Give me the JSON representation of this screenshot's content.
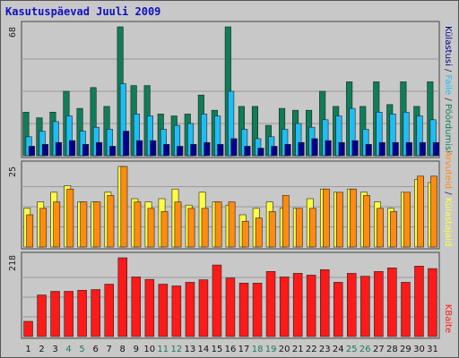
{
  "title": "Kasutuspäevad Juuli 2009",
  "chart_data": {
    "type": "bar",
    "categories": [
      "1",
      "2",
      "3",
      "4",
      "5",
      "6",
      "7",
      "8",
      "9",
      "10",
      "11",
      "12",
      "13",
      "14",
      "15",
      "16",
      "17",
      "18",
      "19",
      "20",
      "21",
      "22",
      "23",
      "24",
      "25",
      "26",
      "27",
      "28",
      "29",
      "30",
      "31"
    ],
    "weekend_days": [
      "4",
      "5",
      "11",
      "12",
      "18",
      "19",
      "25",
      "26"
    ],
    "panels": [
      {
        "id": "top",
        "ymax_label": "68",
        "ymax": 68,
        "series": [
          {
            "name": "Pöördumisi",
            "color": "#0f7d5a",
            "values": [
              23,
              20,
              23,
              34,
              25,
              36,
              26,
              68,
              37,
              37,
              22,
              21,
              22,
              32,
              24,
              68,
              26,
              26,
              16,
              25,
              24,
              24,
              34,
              26,
              39,
              26,
              39,
              27,
              39,
              26,
              39
            ]
          },
          {
            "name": "Faile",
            "color": "#1ebdf5",
            "values": [
              10,
              13,
              18,
              21,
              13,
              15,
              14,
              38,
              22,
              21,
              14,
              16,
              17,
              22,
              21,
              34,
              14,
              9,
              10,
              14,
              17,
              15,
              19,
              21,
              25,
              14,
              23,
              22,
              23,
              21,
              19
            ]
          },
          {
            "name": "Külastusi",
            "color": "#00008c",
            "values": [
              5,
              6,
              7,
              8,
              6,
              7,
              5,
              13,
              8,
              8,
              6,
              5,
              6,
              7,
              6,
              9,
              5,
              4,
              5,
              6,
              7,
              9,
              8,
              7,
              8,
              6,
              7,
              7,
              7,
              7,
              7
            ]
          }
        ]
      },
      {
        "id": "middle",
        "ymax_label": "25",
        "ymax": 25,
        "series": [
          {
            "name": "Külastajaid",
            "color": "#ffff40",
            "values": [
              12,
              14,
              17,
              19,
              14,
              14,
              17,
              25,
              15,
              14,
              15,
              18,
              13,
              17,
              14,
              13,
              10,
              12,
              14,
              12,
              12,
              15,
              18,
              17,
              18,
              17,
              14,
              12,
              17,
              21,
              20
            ]
          },
          {
            "name": "Arvuteid",
            "color": "#ff8c10",
            "values": [
              10,
              12,
              14,
              18,
              14,
              14,
              16,
              25,
              14,
              12,
              11,
              14,
              12,
              12,
              14,
              14,
              8,
              9,
              11,
              16,
              12,
              12,
              18,
              17,
              18,
              16,
              12,
              11,
              17,
              22,
              22
            ]
          }
        ]
      },
      {
        "id": "bottom",
        "ymax_label": "218",
        "ymax": 218,
        "series": [
          {
            "name": "KBaite",
            "color": "#ff1a1a",
            "values": [
              42,
              115,
              125,
              125,
              128,
              130,
              145,
              218,
              165,
              158,
              145,
              140,
              150,
              157,
              198,
              162,
              148,
              148,
              180,
              165,
              175,
              170,
              185,
              150,
              175,
              167,
              180,
              190,
              150,
              195,
              188
            ]
          }
        ]
      }
    ],
    "legend_labels": {
      "poordumisi": "Pöördumisi",
      "faile": "Faile",
      "kulastusi": "Külastusi",
      "kulastajaid": "Külastajaid",
      "arvuteid": "Arvuteid",
      "kbaite": "KBaite",
      "separator": " / "
    }
  }
}
